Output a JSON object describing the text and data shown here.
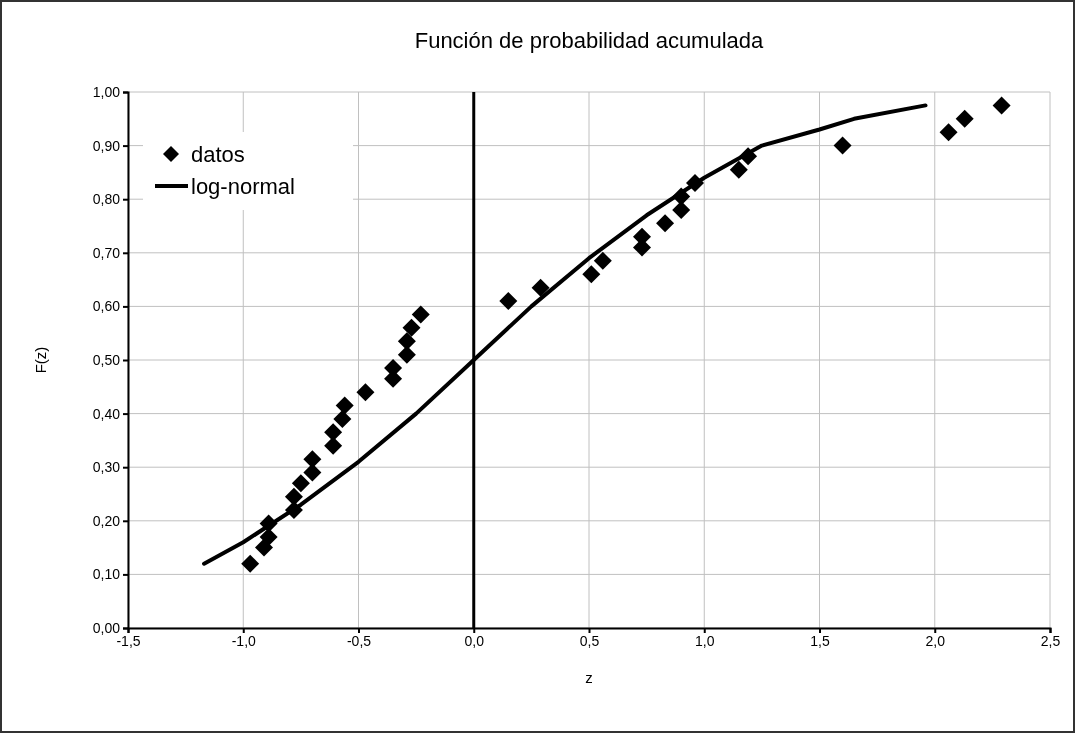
{
  "chart_data": {
    "type": "scatter",
    "title": "Función de probabilidad acumulada",
    "xlabel": "z",
    "ylabel": "F(z)",
    "xlim": [
      -1.5,
      2.5
    ],
    "xticks": [
      {
        "value": -1.5,
        "label": "-1,5"
      },
      {
        "value": -1,
        "label": "-1,0"
      },
      {
        "value": -0.5,
        "label": "-0,5"
      },
      {
        "value": 0,
        "label": "0,0"
      },
      {
        "value": 0.5,
        "label": "0,5"
      },
      {
        "value": 1,
        "label": "1,0"
      },
      {
        "value": 1.5,
        "label": "1,5"
      },
      {
        "value": 2,
        "label": "2,0"
      },
      {
        "value": 2.5,
        "label": "2,5"
      }
    ],
    "ylim": [
      0,
      1
    ],
    "yticks": [
      {
        "value": 0,
        "label": "0,00"
      },
      {
        "value": 0.1,
        "label": "0,10"
      },
      {
        "value": 0.2,
        "label": "0,20"
      },
      {
        "value": 0.3,
        "label": "0,30"
      },
      {
        "value": 0.4,
        "label": "0,40"
      },
      {
        "value": 0.5,
        "label": "0,50"
      },
      {
        "value": 0.6,
        "label": "0,60"
      },
      {
        "value": 0.7,
        "label": "0,70"
      },
      {
        "value": 0.8,
        "label": "0,80"
      },
      {
        "value": 0.9,
        "label": "0,90"
      },
      {
        "value": 1,
        "label": "1,00"
      }
    ],
    "grid": true,
    "legend": "top left",
    "ref_lines": [
      {
        "axis": "x",
        "value": 0,
        "color": "#000000"
      }
    ],
    "series": [
      {
        "name": "datos",
        "marker": "diamond",
        "color": "#000000",
        "x": [
          -0.97,
          -0.91,
          -0.89,
          -0.89,
          -0.78,
          -0.78,
          -0.75,
          -0.7,
          -0.7,
          -0.61,
          -0.61,
          -0.57,
          -0.56,
          -0.47,
          -0.35,
          -0.35,
          -0.29,
          -0.29,
          -0.27,
          -0.23,
          0.15,
          0.29,
          0.51,
          0.56,
          0.73,
          0.73,
          0.83,
          0.9,
          0.9,
          0.96,
          1.15,
          1.19,
          1.6,
          2.06,
          2.13,
          2.29
        ],
        "values": [
          0.12,
          0.15,
          0.17,
          0.195,
          0.22,
          0.245,
          0.27,
          0.29,
          0.315,
          0.34,
          0.365,
          0.39,
          0.415,
          0.44,
          0.465,
          0.485,
          0.51,
          0.535,
          0.56,
          0.585,
          0.61,
          0.635,
          0.66,
          0.685,
          0.71,
          0.73,
          0.755,
          0.78,
          0.805,
          0.83,
          0.855,
          0.88,
          0.9,
          0.925,
          0.95,
          0.975
        ]
      },
      {
        "name": "log-normal",
        "type": "line",
        "marker": "none",
        "line_style": "solid",
        "color": "#000000",
        "x": [
          -1.17,
          -1.0,
          -0.75,
          -0.5,
          -0.25,
          0,
          0.25,
          0.5,
          0.75,
          1.0,
          1.25,
          1.5,
          1.65,
          1.96
        ],
        "values": [
          0.12,
          0.16,
          0.23,
          0.31,
          0.4,
          0.5,
          0.6,
          0.69,
          0.77,
          0.84,
          0.9,
          0.93,
          0.95,
          0.975
        ]
      }
    ]
  }
}
